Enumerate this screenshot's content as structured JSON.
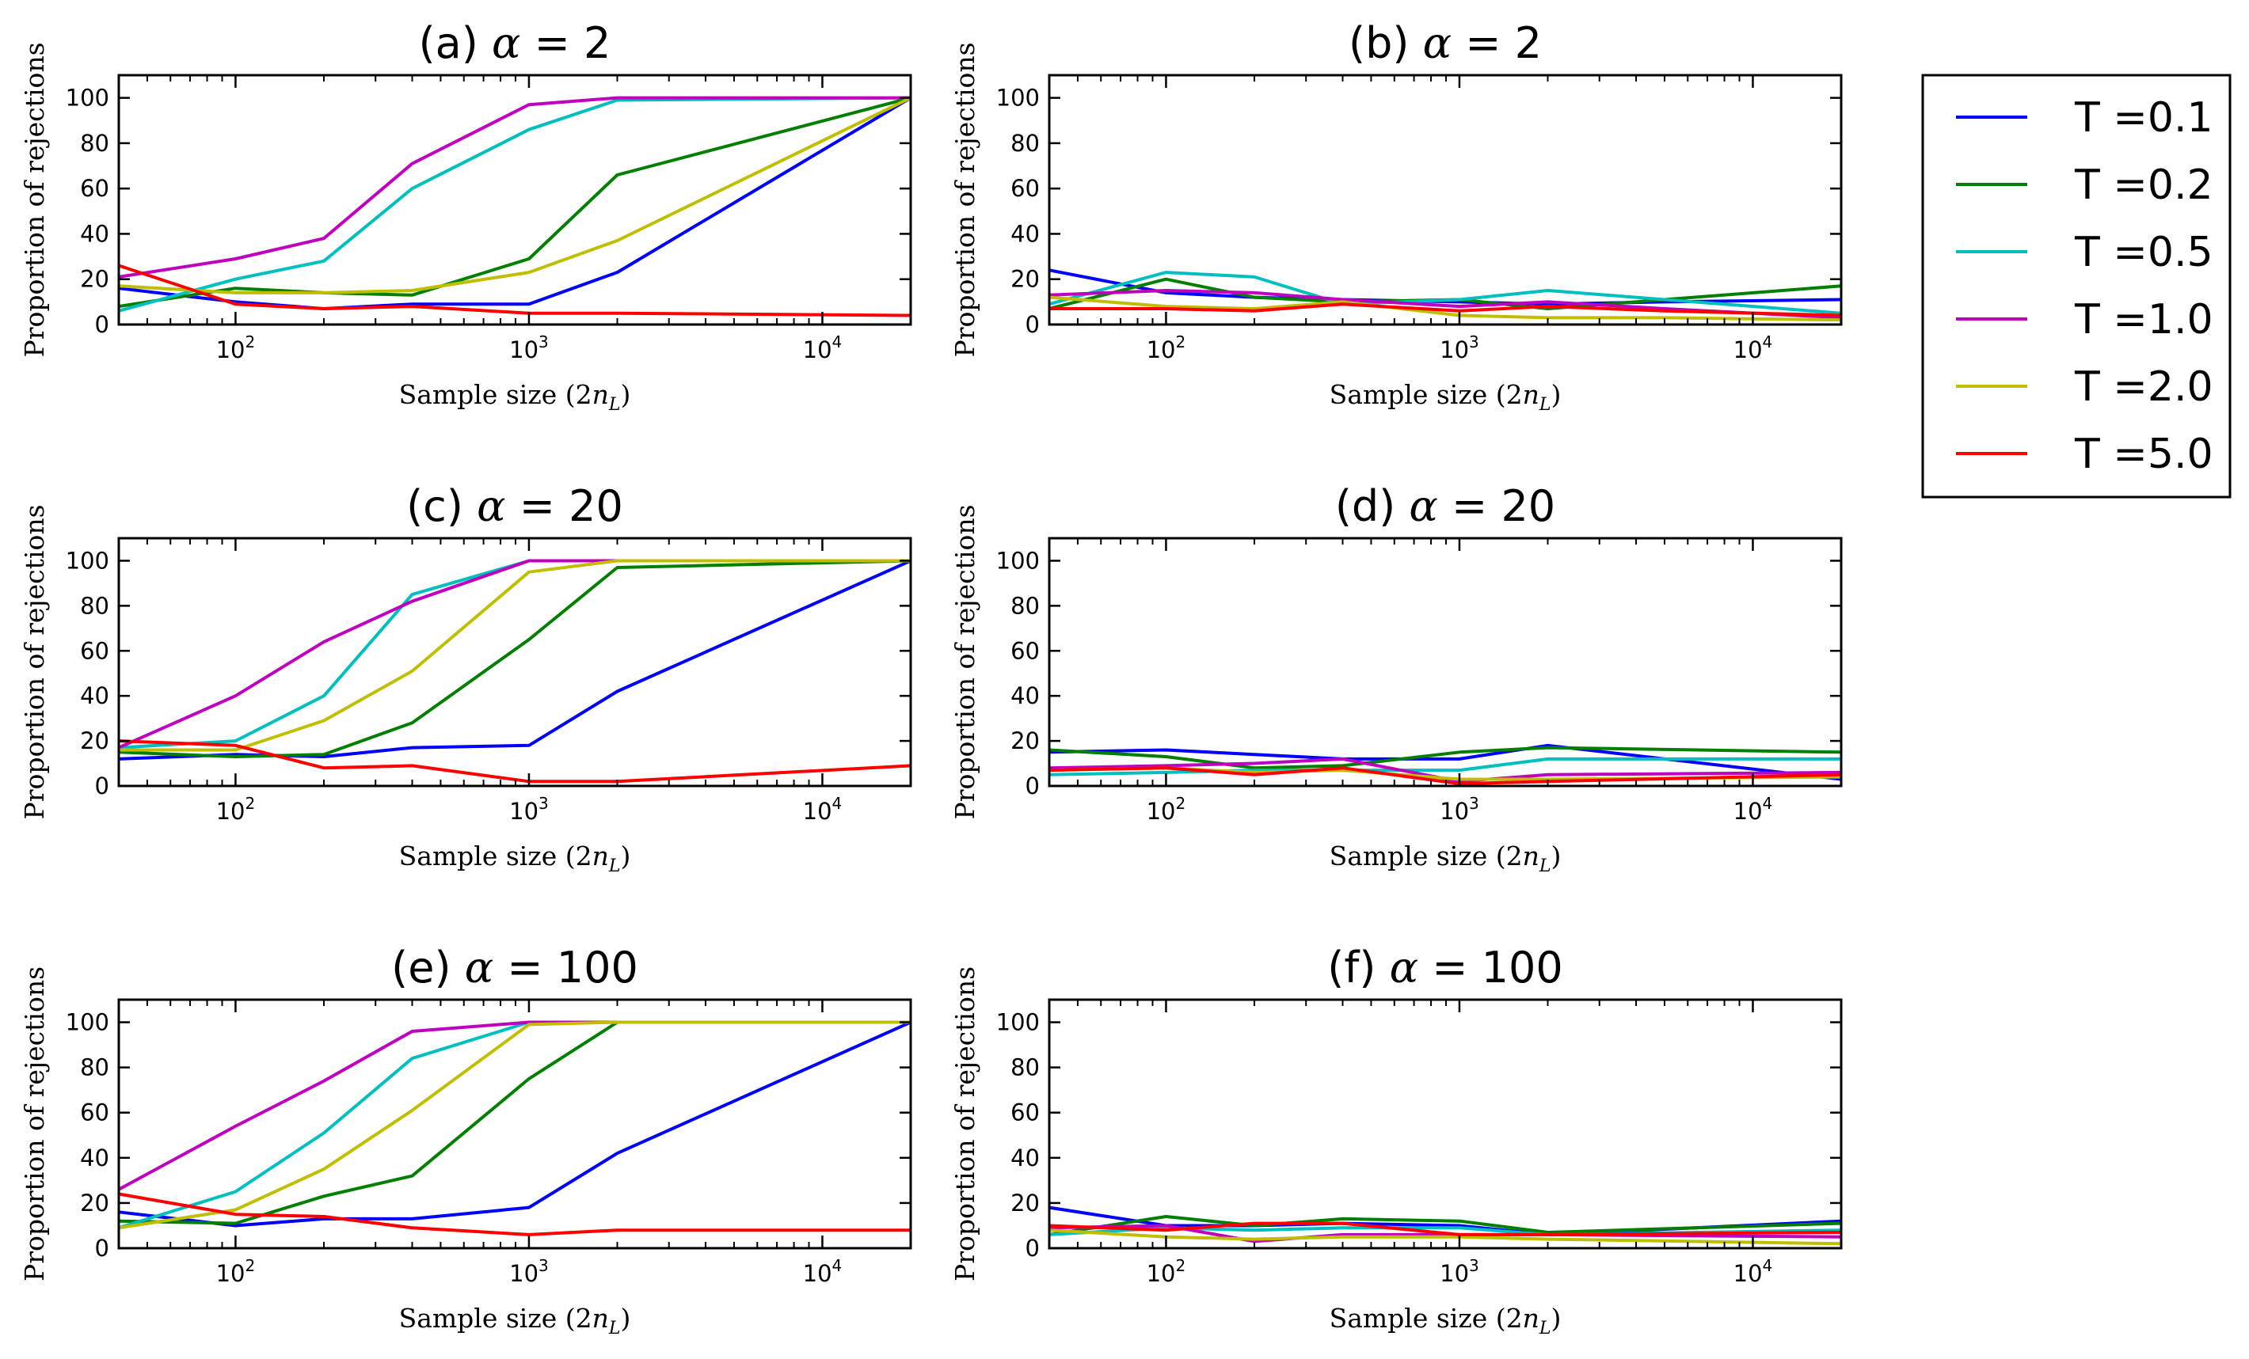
{
  "legend": {
    "entries": [
      {
        "label": "T =0.1",
        "color": "#0000ff"
      },
      {
        "label": "T =0.2",
        "color": "#007f00"
      },
      {
        "label": "T =0.5",
        "color": "#00bfbf"
      },
      {
        "label": "T =1.0",
        "color": "#bf00bf"
      },
      {
        "label": "T =2.0",
        "color": "#bfbf00"
      },
      {
        "label": "T =5.0",
        "color": "#ff0000"
      }
    ]
  },
  "chart_data": [
    {
      "type": "line",
      "title_prefix": "(a) ",
      "alpha_symbol": "α",
      "title_suffix": " = 2",
      "xlabel": "Sample size (2n_L)",
      "ylabel": "Proportion of rejections",
      "xscale": "log",
      "xlim": [
        40,
        20000
      ],
      "ylim": [
        0,
        110
      ],
      "yticks": [
        "0",
        "20",
        "40",
        "60",
        "80",
        "100"
      ],
      "xticks": [
        {
          "base": "10",
          "exp": "2"
        },
        {
          "base": "10",
          "exp": "3"
        },
        {
          "base": "10",
          "exp": "4"
        }
      ],
      "x": [
        40,
        100,
        200,
        400,
        1000,
        2000,
        20000
      ],
      "series": [
        {
          "name": "T =0.1",
          "values": [
            16,
            10,
            7,
            9,
            9,
            23,
            100
          ]
        },
        {
          "name": "T =0.2",
          "values": [
            8,
            16,
            14,
            13,
            29,
            66,
            100
          ]
        },
        {
          "name": "T =0.5",
          "values": [
            6,
            20,
            28,
            60,
            86,
            99,
            100
          ]
        },
        {
          "name": "T =1.0",
          "values": [
            21,
            29,
            38,
            71,
            97,
            100,
            100
          ]
        },
        {
          "name": "T =2.0",
          "values": [
            17,
            14,
            14,
            15,
            23,
            37,
            100
          ]
        },
        {
          "name": "T =5.0",
          "values": [
            26,
            9,
            7,
            8,
            5,
            5,
            4
          ]
        }
      ]
    },
    {
      "type": "line",
      "title_prefix": "(b) ",
      "alpha_symbol": "α",
      "title_suffix": " = 2",
      "xlabel": "Sample size (2n_L)",
      "ylabel": "Proportion of rejections",
      "xscale": "log",
      "xlim": [
        40,
        20000
      ],
      "ylim": [
        0,
        110
      ],
      "yticks": [
        "0",
        "20",
        "40",
        "60",
        "80",
        "100"
      ],
      "xticks": [
        {
          "base": "10",
          "exp": "2"
        },
        {
          "base": "10",
          "exp": "3"
        },
        {
          "base": "10",
          "exp": "4"
        }
      ],
      "x": [
        40,
        100,
        200,
        400,
        1000,
        2000,
        5000,
        20000
      ],
      "series": [
        {
          "name": "T =0.1",
          "values": [
            24,
            14,
            12,
            11,
            10,
            9,
            10,
            11
          ]
        },
        {
          "name": "T =0.2",
          "values": [
            7,
            20,
            12,
            10,
            11,
            7,
            11,
            17
          ]
        },
        {
          "name": "T =0.5",
          "values": [
            9,
            23,
            21,
            9,
            11,
            15,
            11,
            5
          ]
        },
        {
          "name": "T =1.0",
          "values": [
            13,
            15,
            14,
            11,
            8,
            10,
            7,
            3
          ]
        },
        {
          "name": "T =2.0",
          "values": [
            12,
            8,
            7,
            10,
            4,
            3,
            3,
            2
          ]
        },
        {
          "name": "T =5.0",
          "values": [
            7,
            7,
            6,
            9,
            6,
            8,
            6,
            4
          ]
        }
      ]
    },
    {
      "type": "line",
      "title_prefix": "(c) ",
      "alpha_symbol": "α",
      "title_suffix": " = 20",
      "xlabel": "Sample size (2n_L)",
      "ylabel": "Proportion of rejections",
      "xscale": "log",
      "xlim": [
        40,
        20000
      ],
      "ylim": [
        0,
        110
      ],
      "yticks": [
        "0",
        "20",
        "40",
        "60",
        "80",
        "100"
      ],
      "xticks": [
        {
          "base": "10",
          "exp": "2"
        },
        {
          "base": "10",
          "exp": "3"
        },
        {
          "base": "10",
          "exp": "4"
        }
      ],
      "x": [
        40,
        100,
        200,
        400,
        1000,
        2000,
        20000
      ],
      "series": [
        {
          "name": "T =0.1",
          "values": [
            12,
            14,
            13,
            17,
            18,
            42,
            100
          ]
        },
        {
          "name": "T =0.2",
          "values": [
            15,
            13,
            14,
            28,
            65,
            97,
            100
          ]
        },
        {
          "name": "T =0.5",
          "values": [
            17,
            20,
            40,
            85,
            100,
            100,
            100
          ]
        },
        {
          "name": "T =1.0",
          "values": [
            17,
            40,
            64,
            82,
            100,
            100,
            100
          ]
        },
        {
          "name": "T =2.0",
          "values": [
            16,
            16,
            29,
            51,
            95,
            100,
            100
          ]
        },
        {
          "name": "T =5.0",
          "values": [
            20,
            18,
            8,
            9,
            2,
            2,
            9
          ]
        }
      ]
    },
    {
      "type": "line",
      "title_prefix": "(d) ",
      "alpha_symbol": "α",
      "title_suffix": " = 20",
      "xlabel": "Sample size (2n_L)",
      "ylabel": "Proportion of rejections",
      "xscale": "log",
      "xlim": [
        40,
        20000
      ],
      "ylim": [
        0,
        110
      ],
      "yticks": [
        "0",
        "20",
        "40",
        "60",
        "80",
        "100"
      ],
      "xticks": [
        {
          "base": "10",
          "exp": "2"
        },
        {
          "base": "10",
          "exp": "3"
        },
        {
          "base": "10",
          "exp": "4"
        }
      ],
      "x": [
        40,
        100,
        200,
        400,
        1000,
        2000,
        20000
      ],
      "series": [
        {
          "name": "T =0.1",
          "values": [
            15,
            16,
            14,
            12,
            12,
            18,
            3
          ]
        },
        {
          "name": "T =0.2",
          "values": [
            16,
            13,
            8,
            9,
            15,
            17,
            15
          ]
        },
        {
          "name": "T =0.5",
          "values": [
            5,
            6,
            7,
            7,
            7,
            12,
            12
          ]
        },
        {
          "name": "T =1.0",
          "values": [
            8,
            9,
            10,
            12,
            2,
            5,
            6
          ]
        },
        {
          "name": "T =2.0",
          "values": [
            7,
            8,
            6,
            7,
            3,
            3,
            4
          ]
        },
        {
          "name": "T =5.0",
          "values": [
            7,
            8,
            5,
            8,
            1,
            2,
            5
          ]
        }
      ]
    },
    {
      "type": "line",
      "title_prefix": "(e) ",
      "alpha_symbol": "α",
      "title_suffix": " = 100",
      "xlabel": "Sample size (2n_L)",
      "ylabel": "Proportion of rejections",
      "xscale": "log",
      "xlim": [
        40,
        20000
      ],
      "ylim": [
        0,
        110
      ],
      "yticks": [
        "0",
        "20",
        "40",
        "60",
        "80",
        "100"
      ],
      "xticks": [
        {
          "base": "10",
          "exp": "2"
        },
        {
          "base": "10",
          "exp": "3"
        },
        {
          "base": "10",
          "exp": "4"
        }
      ],
      "x": [
        40,
        100,
        200,
        400,
        1000,
        2000,
        20000
      ],
      "series": [
        {
          "name": "T =0.1",
          "values": [
            16,
            10,
            13,
            13,
            18,
            42,
            100
          ]
        },
        {
          "name": "T =0.2",
          "values": [
            12,
            11,
            23,
            32,
            75,
            100,
            100
          ]
        },
        {
          "name": "T =0.5",
          "values": [
            9,
            25,
            51,
            84,
            100,
            100,
            100
          ]
        },
        {
          "name": "T =1.0",
          "values": [
            26,
            54,
            74,
            96,
            100,
            100,
            100
          ]
        },
        {
          "name": "T =2.0",
          "values": [
            9,
            17,
            35,
            61,
            99,
            100,
            100
          ]
        },
        {
          "name": "T =5.0",
          "values": [
            24,
            15,
            14,
            9,
            6,
            8,
            8
          ]
        }
      ]
    },
    {
      "type": "line",
      "title_prefix": "(f) ",
      "alpha_symbol": "α",
      "title_suffix": " = 100",
      "xlabel": "Sample size (2n_L)",
      "ylabel": "Proportion of rejections",
      "xscale": "log",
      "xlim": [
        40,
        20000
      ],
      "ylim": [
        0,
        110
      ],
      "yticks": [
        "0",
        "20",
        "40",
        "60",
        "80",
        "100"
      ],
      "xticks": [
        {
          "base": "10",
          "exp": "2"
        },
        {
          "base": "10",
          "exp": "3"
        },
        {
          "base": "10",
          "exp": "4"
        }
      ],
      "x": [
        40,
        100,
        200,
        400,
        1000,
        2000,
        20000
      ],
      "series": [
        {
          "name": "T =0.1",
          "values": [
            18,
            10,
            10,
            11,
            10,
            6,
            12
          ]
        },
        {
          "name": "T =0.2",
          "values": [
            6,
            14,
            10,
            13,
            12,
            7,
            11
          ]
        },
        {
          "name": "T =0.5",
          "values": [
            6,
            9,
            8,
            9,
            9,
            6,
            8
          ]
        },
        {
          "name": "T =1.0",
          "values": [
            9,
            10,
            3,
            6,
            6,
            6,
            5
          ]
        },
        {
          "name": "T =2.0",
          "values": [
            8,
            5,
            4,
            5,
            5,
            4,
            2
          ]
        },
        {
          "name": "T =5.0",
          "values": [
            10,
            8,
            11,
            11,
            6,
            6,
            7
          ]
        }
      ]
    }
  ]
}
